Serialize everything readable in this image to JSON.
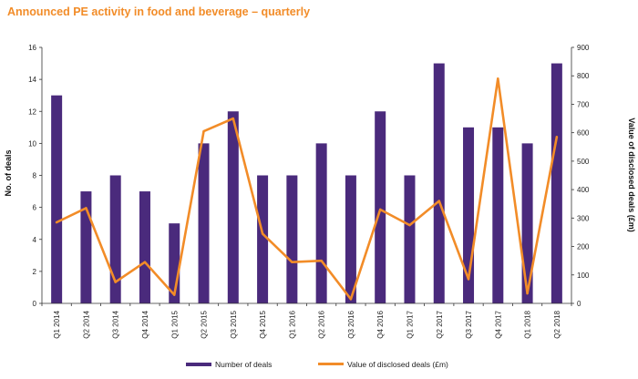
{
  "chart_data": {
    "type": "bar",
    "title": "Announced PE activity in food and beverage – quarterly",
    "categories": [
      "Q1 2014",
      "Q2 2014",
      "Q3 2014",
      "Q4 2014",
      "Q1 2015",
      "Q2 2015",
      "Q3 2015",
      "Q4 2015",
      "Q1 2016",
      "Q2 2016",
      "Q3 2016",
      "Q4 2016",
      "Q1 2017",
      "Q2 2017",
      "Q3 2017",
      "Q4 2017",
      "Q1 2018",
      "Q2 2018"
    ],
    "ylabel": "No. of deals",
    "y2label": "Value of disclosed deals (£m)",
    "ylim": [
      0,
      16
    ],
    "y2lim": [
      0,
      900
    ],
    "yticks": [
      0,
      2,
      4,
      6,
      8,
      10,
      12,
      14,
      16
    ],
    "y2ticks": [
      0,
      100,
      200,
      300,
      400,
      500,
      600,
      700,
      800,
      900
    ],
    "series": [
      {
        "name": "Number of deals",
        "type": "bar",
        "axis": "left",
        "color": "#4a2a7c",
        "values": [
          13,
          7,
          8,
          7,
          5,
          10,
          12,
          8,
          8,
          10,
          8,
          12,
          8,
          15,
          11,
          11,
          10,
          15
        ]
      },
      {
        "name": "Value of disclosed deals (£m)",
        "type": "line",
        "axis": "right",
        "color": "#f28c28",
        "values": [
          285,
          335,
          75,
          145,
          30,
          605,
          650,
          245,
          145,
          150,
          15,
          330,
          275,
          360,
          85,
          790,
          35,
          585
        ]
      }
    ],
    "legend": "bottom",
    "grid": false,
    "title_color": "#f28c28"
  }
}
